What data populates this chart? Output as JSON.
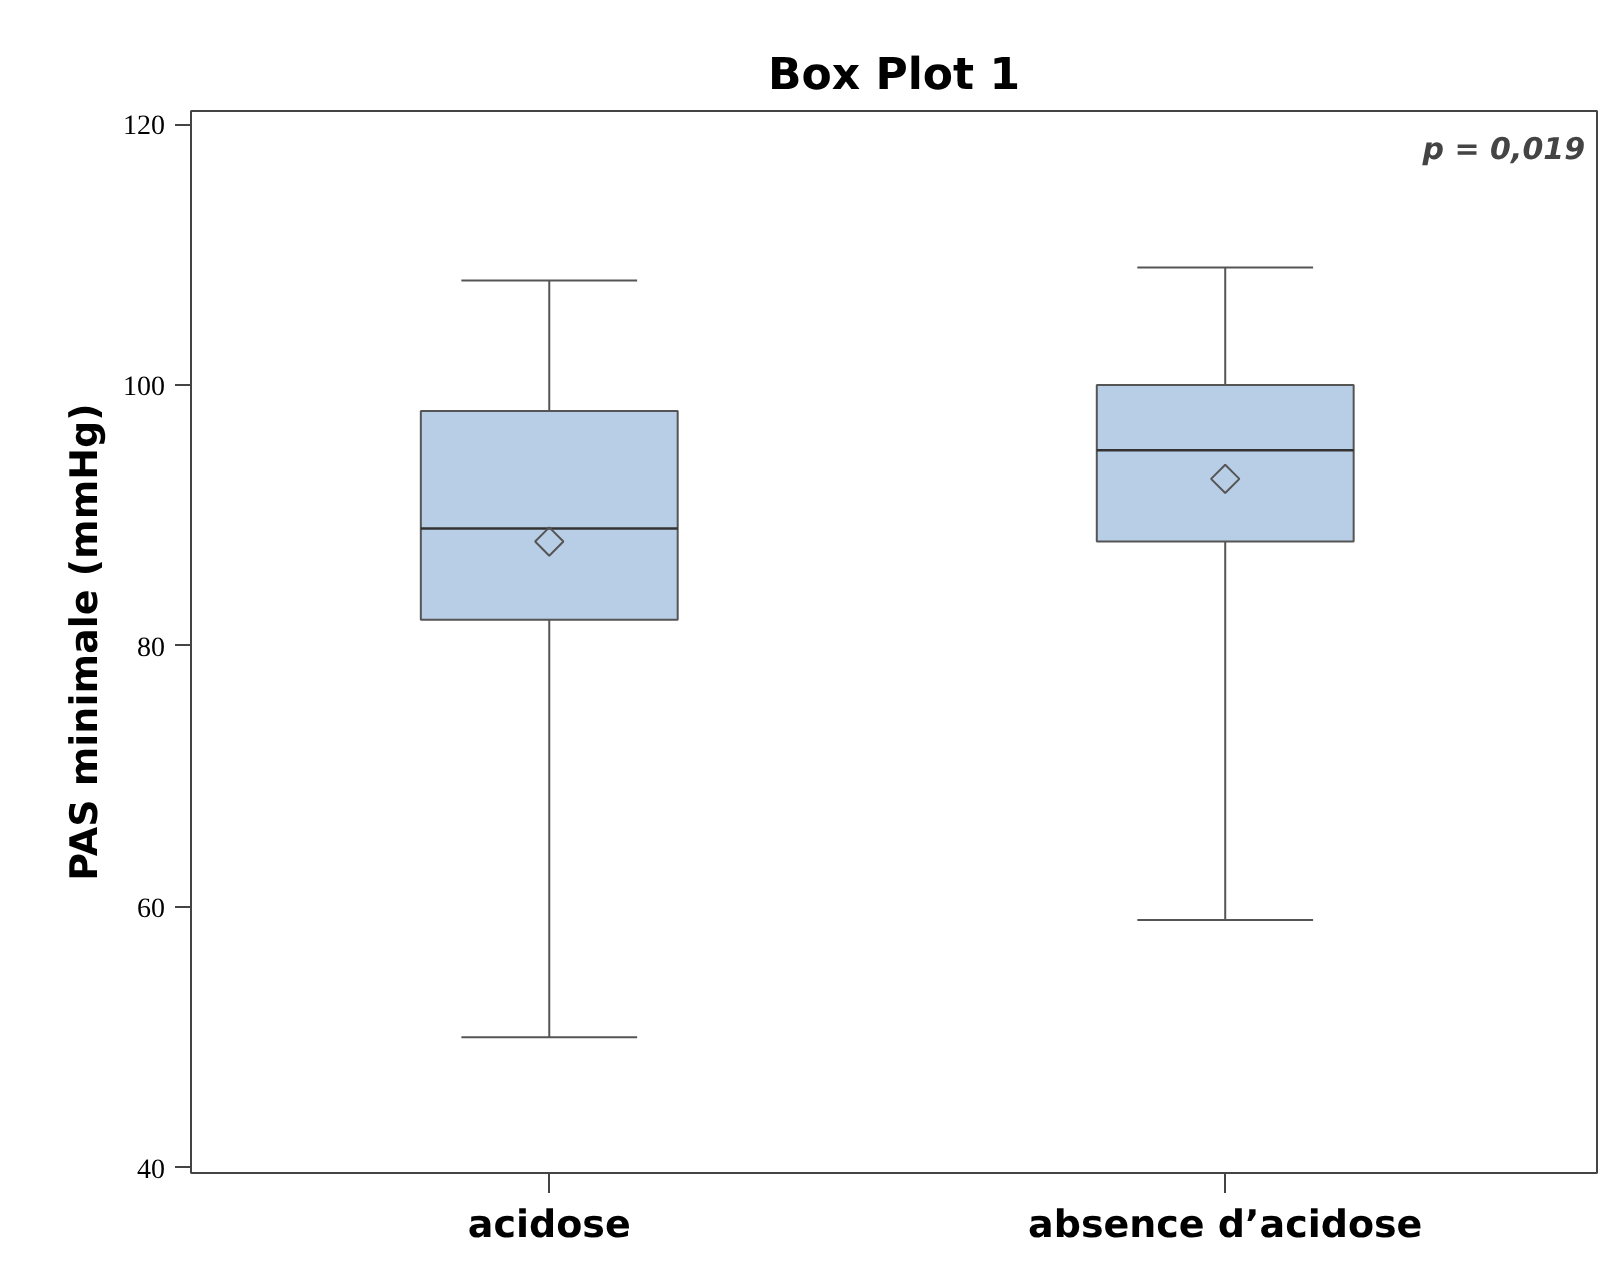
{
  "chart_data": {
    "type": "box",
    "title": "Box Plot 1",
    "ylabel": "PAS minimale (mmHg)",
    "categories": [
      "acidose",
      "absence d’acidose"
    ],
    "boxes": [
      {
        "low": 50,
        "q1": 82,
        "median": 89,
        "q3": 98,
        "high": 108,
        "mean": 88
      },
      {
        "low": 59,
        "q1": 88,
        "median": 95,
        "q3": 100,
        "high": 109,
        "mean": 92.8
      }
    ],
    "color": "#b8cee6",
    "ylim": [
      39.6,
      121
    ],
    "yticks": [
      40,
      60,
      80,
      100,
      120
    ],
    "grid": false,
    "annotations": [
      "p = 0,019"
    ]
  }
}
